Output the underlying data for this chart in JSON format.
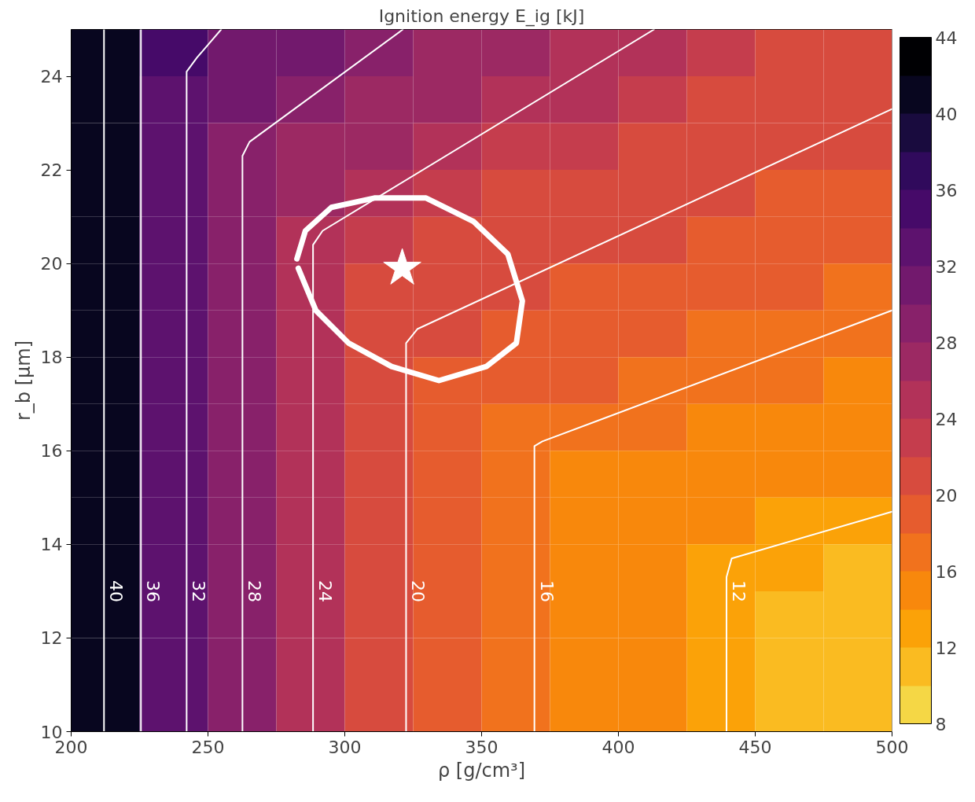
{
  "chart_data": {
    "type": "heatmap",
    "title": "Ignition energy E_ig [kJ]",
    "xlabel": "ρ [g/cm³]",
    "ylabel": "r_b [μm]",
    "xlim": [
      200,
      500
    ],
    "ylim": [
      10,
      25
    ],
    "xticks": [
      200,
      250,
      300,
      350,
      400,
      450,
      500
    ],
    "yticks": [
      10,
      12,
      14,
      16,
      18,
      20,
      22,
      24
    ],
    "clim": [
      8,
      44
    ],
    "cticks": [
      8,
      12,
      16,
      20,
      24,
      28,
      32,
      36,
      40,
      44
    ],
    "grid": false,
    "cells": [
      [
        40,
        34,
        31,
        30,
        28,
        27,
        26,
        25,
        24,
        23,
        22,
        22
      ],
      [
        40,
        33,
        30,
        28,
        27,
        26,
        25,
        24,
        23,
        22,
        21,
        20
      ],
      [
        40,
        33,
        28,
        27,
        26,
        24,
        23,
        23,
        22,
        21,
        20,
        20
      ],
      [
        40,
        33,
        28,
        26,
        24,
        23,
        22,
        22,
        21,
        20,
        19,
        19
      ],
      [
        40,
        33,
        28,
        24,
        23,
        22,
        21,
        20,
        20,
        19,
        19,
        18
      ],
      [
        40,
        33,
        28,
        24,
        22,
        21,
        20,
        19,
        19,
        18,
        18,
        17
      ],
      [
        40,
        33,
        28,
        24,
        21,
        20,
        19,
        18,
        18,
        17,
        16,
        16
      ],
      [
        40,
        33,
        28,
        24,
        21,
        19,
        19,
        18,
        17,
        16,
        16,
        15
      ],
      [
        40,
        33,
        28,
        24,
        21,
        19,
        17,
        16,
        16,
        15,
        15,
        14
      ],
      [
        40,
        33,
        28,
        24,
        21,
        19,
        17,
        15,
        15,
        15,
        14,
        14
      ],
      [
        40,
        33,
        28,
        24,
        21,
        19,
        17,
        15,
        14,
        14,
        13,
        12
      ],
      [
        40,
        33,
        28,
        24,
        21,
        19,
        17,
        15,
        14,
        12,
        12,
        11
      ],
      [
        40,
        33,
        28,
        24,
        21,
        19,
        17,
        15,
        14,
        12,
        11,
        11
      ],
      [
        40,
        33,
        28,
        24,
        21,
        19,
        17,
        15,
        14,
        12,
        11,
        10
      ],
      [
        40,
        33,
        28,
        24,
        21,
        19,
        17,
        15,
        14,
        12,
        11,
        10
      ]
    ],
    "series": [
      {
        "type": "line",
        "name": "40",
        "color": "#ffffff",
        "x": [
          212,
          212
        ],
        "values": [
          10,
          25
        ]
      },
      {
        "type": "line",
        "name": "36",
        "color": "#ffffff",
        "x": [
          225.5,
          225.5
        ],
        "values": [
          10,
          25
        ]
      },
      {
        "type": "line",
        "name": "32",
        "color": "#ffffff",
        "x": [
          242.2,
          242.2,
          246,
          254.8
        ],
        "values": [
          10,
          24.1,
          24.4,
          25
        ]
      },
      {
        "type": "line",
        "name": "28",
        "color": "#ffffff",
        "x": [
          262.6,
          262.6,
          265.2,
          321.2
        ],
        "values": [
          10,
          22.3,
          22.6,
          25
        ]
      },
      {
        "type": "line",
        "name": "24",
        "color": "#ffffff",
        "x": [
          288.4,
          288.4,
          291.9,
          413
        ],
        "values": [
          10,
          20.4,
          20.7,
          25
        ]
      },
      {
        "type": "line",
        "name": "20",
        "color": "#ffffff",
        "x": [
          322.4,
          322.4,
          326.5,
          500
        ],
        "values": [
          10,
          18.3,
          18.6,
          23.3
        ]
      },
      {
        "type": "line",
        "name": "16",
        "color": "#ffffff",
        "x": [
          369.3,
          369.3,
          372.2,
          500
        ],
        "values": [
          10,
          16.1,
          16.2,
          19
        ]
      },
      {
        "type": "line",
        "name": "12",
        "color": "#ffffff",
        "x": [
          439.5,
          439.5,
          441.4,
          500
        ],
        "values": [
          10,
          13.3,
          13.7,
          14.7
        ]
      },
      {
        "type": "line",
        "color": "#ffffff",
        "x": [
          282.5,
          285.6,
          295.1,
          310.8,
          329.7,
          347.0,
          359.6,
          364.9,
          362.7,
          351.7,
          334.4,
          317.1,
          301.4,
          289.4,
          283.0
        ],
        "values": [
          20.1,
          20.7,
          21.2,
          21.4,
          21.4,
          20.9,
          20.2,
          19.2,
          18.3,
          17.8,
          17.5,
          17.8,
          18.3,
          19.0,
          19.9
        ]
      },
      {
        "type": "scatter",
        "marker": "star",
        "color": "#ffffff",
        "x": [
          321
        ],
        "values": [
          19.9
        ]
      }
    ]
  }
}
